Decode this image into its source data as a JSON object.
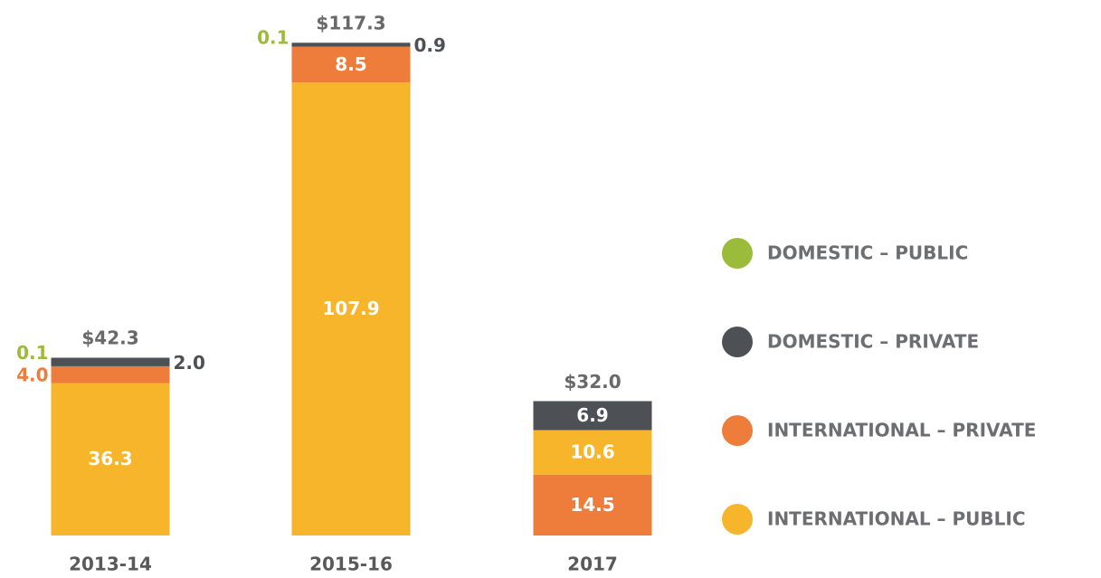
{
  "chart_data": {
    "type": "stacked_bar",
    "categories": [
      "2013-14",
      "2015-16",
      "2017"
    ],
    "series": [
      {
        "name": "DOMESTIC – PUBLIC",
        "color": "#9bbb3b",
        "values": [
          0.1,
          0.1,
          null
        ],
        "value_labels": [
          "0.1",
          "0.1",
          null
        ]
      },
      {
        "name": "DOMESTIC – PRIVATE",
        "color": "#4d5156",
        "values": [
          2.0,
          0.9,
          6.9
        ],
        "value_labels": [
          "2.0",
          "0.9",
          "6.9"
        ]
      },
      {
        "name": "INTERNATIONAL – PRIVATE",
        "color": "#ee7d3c",
        "values": [
          4.0,
          8.5,
          14.5
        ],
        "value_labels": [
          "4.0",
          "8.5",
          "14.5"
        ]
      },
      {
        "name": "INTERNATIONAL – PUBLIC",
        "color": "#f7b52c",
        "values": [
          36.3,
          107.9,
          10.6
        ],
        "value_labels": [
          "36.3",
          "107.9",
          "10.6"
        ]
      }
    ],
    "total_labels": [
      "$42.3",
      "$117.3",
      "$32.0"
    ]
  }
}
